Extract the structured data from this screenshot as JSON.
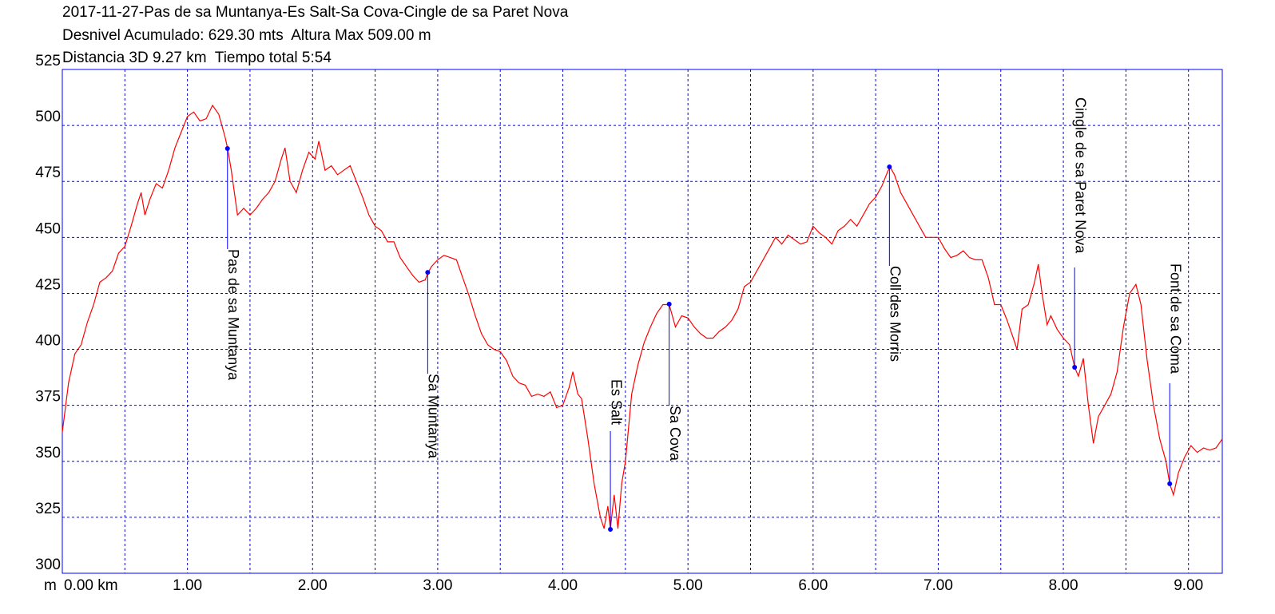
{
  "chart_data": {
    "type": "line",
    "title_lines": [
      "2017-11-27-Pas de sa Muntanya-Es Salt-Sa Cova-Cingle de sa Paret Nova",
      "Desnivel Acumulado: 629.30 mts  Altura Max 509.00 m",
      "Distancia 3D 9.27 km  Tiempo total 5:54"
    ],
    "ylabel": "m",
    "color": "#ff0000",
    "x": [
      0,
      0.05,
      0.1,
      0.15,
      0.2,
      0.25,
      0.3,
      0.35,
      0.4,
      0.45,
      0.5,
      0.55,
      0.6,
      0.63,
      0.66,
      0.7,
      0.75,
      0.8,
      0.85,
      0.9,
      0.95,
      1.0,
      1.05,
      1.1,
      1.15,
      1.2,
      1.25,
      1.3,
      1.32,
      1.35,
      1.4,
      1.45,
      1.5,
      1.55,
      1.6,
      1.65,
      1.7,
      1.75,
      1.78,
      1.82,
      1.87,
      1.92,
      1.97,
      2.02,
      2.05,
      2.1,
      2.15,
      2.2,
      2.25,
      2.3,
      2.35,
      2.4,
      2.45,
      2.5,
      2.55,
      2.6,
      2.65,
      2.7,
      2.75,
      2.8,
      2.85,
      2.9,
      2.92,
      2.95,
      3.0,
      3.05,
      3.1,
      3.15,
      3.2,
      3.25,
      3.3,
      3.35,
      3.4,
      3.45,
      3.5,
      3.55,
      3.6,
      3.65,
      3.7,
      3.75,
      3.8,
      3.85,
      3.9,
      3.95,
      4.0,
      4.05,
      4.08,
      4.12,
      4.15,
      4.2,
      4.25,
      4.3,
      4.33,
      4.36,
      4.38,
      4.41,
      4.44,
      4.47,
      4.5,
      4.55,
      4.6,
      4.65,
      4.7,
      4.75,
      4.8,
      4.85,
      4.9,
      4.95,
      5.0,
      5.05,
      5.1,
      5.15,
      5.2,
      5.25,
      5.3,
      5.35,
      5.4,
      5.45,
      5.5,
      5.55,
      5.6,
      5.65,
      5.7,
      5.75,
      5.8,
      5.85,
      5.9,
      5.95,
      6.0,
      6.05,
      6.1,
      6.15,
      6.2,
      6.25,
      6.3,
      6.35,
      6.4,
      6.45,
      6.5,
      6.55,
      6.6,
      6.62,
      6.65,
      6.7,
      6.75,
      6.8,
      6.85,
      6.9,
      7.0,
      7.05,
      7.1,
      7.15,
      7.2,
      7.25,
      7.3,
      7.35,
      7.4,
      7.45,
      7.5,
      7.55,
      7.6,
      7.63,
      7.67,
      7.72,
      7.77,
      7.8,
      7.83,
      7.87,
      7.9,
      7.95,
      8.0,
      8.05,
      8.09,
      8.12,
      8.16,
      8.2,
      8.24,
      8.28,
      8.33,
      8.38,
      8.43,
      8.48,
      8.53,
      8.58,
      8.62,
      8.67,
      8.72,
      8.77,
      8.82,
      8.85,
      8.88,
      8.92,
      8.97,
      9.02,
      9.07,
      9.12,
      9.17,
      9.22,
      9.27
    ],
    "values": [
      363,
      385,
      398,
      402,
      412,
      420,
      430,
      432,
      435,
      443,
      446,
      455,
      465,
      470,
      460,
      467,
      474,
      472,
      480,
      490,
      497,
      504,
      506,
      502,
      503,
      509,
      505,
      495,
      490,
      480,
      460,
      463,
      460,
      463,
      467,
      470,
      475,
      485,
      490,
      475,
      470,
      480,
      488,
      485,
      493,
      480,
      482,
      478,
      480,
      482,
      475,
      468,
      460,
      455,
      453,
      448,
      448,
      441,
      437,
      433,
      430,
      431,
      434,
      437,
      440,
      442,
      441,
      440,
      432,
      424,
      415,
      407,
      402,
      400,
      399,
      395,
      388,
      385,
      384,
      379,
      380,
      379,
      381,
      374,
      375,
      383,
      390,
      380,
      378,
      360,
      340,
      325,
      320,
      330,
      320,
      335,
      320,
      340,
      350,
      380,
      393,
      403,
      410,
      416,
      420,
      420,
      410,
      415,
      414,
      410,
      407,
      405,
      405,
      408,
      410,
      413,
      418,
      428,
      430,
      435,
      440,
      445,
      450,
      447,
      451,
      449,
      447,
      448,
      455,
      452,
      450,
      447,
      453,
      455,
      458,
      455,
      460,
      465,
      468,
      473,
      480,
      481,
      478,
      470,
      465,
      460,
      455,
      450,
      450,
      445,
      441,
      442,
      444,
      441,
      440,
      440,
      432,
      420,
      420,
      413,
      405,
      400,
      418,
      420,
      430,
      438,
      425,
      411,
      415,
      409,
      405,
      402,
      392,
      388,
      396,
      375,
      358,
      370,
      375,
      380,
      390,
      410,
      425,
      429,
      420,
      395,
      375,
      360,
      350,
      340,
      335,
      345,
      352,
      357,
      354,
      356,
      355,
      356,
      360
    ],
    "xlim": [
      0,
      9.27
    ],
    "ylim": [
      300,
      525
    ],
    "xticks": [
      {
        "value": 0,
        "label": "0.00 km"
      },
      {
        "value": 1,
        "label": "1.00"
      },
      {
        "value": 2,
        "label": "2.00"
      },
      {
        "value": 3,
        "label": "3.00"
      },
      {
        "value": 4,
        "label": "4.00"
      },
      {
        "value": 5,
        "label": "5.00"
      },
      {
        "value": 6,
        "label": "6.00"
      },
      {
        "value": 7,
        "label": "7.00"
      },
      {
        "value": 8,
        "label": "8.00"
      },
      {
        "value": 9,
        "label": "9.00"
      }
    ],
    "xminor_ticks": [
      0.5,
      1.5,
      2.5,
      3.5,
      4.5,
      5.5,
      6.5,
      7.5,
      8.5
    ],
    "yticks": [
      300,
      325,
      350,
      375,
      400,
      425,
      450,
      475,
      500,
      525
    ],
    "grid": true,
    "annotations": [
      {
        "label": "Pas de sa Muntanya",
        "x": 1.32,
        "y": 489.7
      },
      {
        "label": "Sa Muntanya",
        "x": 2.92,
        "y": 434.4
      },
      {
        "label": "Es Salt",
        "x": 4.38,
        "y": 319.6
      },
      {
        "label": "Sa Cova",
        "x": 4.85,
        "y": 420.2
      },
      {
        "label": "Coll des Morris",
        "x": 6.61,
        "y": 481.5
      },
      {
        "label": "Cingle de sa Paret Nova",
        "x": 8.09,
        "y": 392
      },
      {
        "label": "Font de sa Coma",
        "x": 8.85,
        "y": 340
      }
    ]
  }
}
